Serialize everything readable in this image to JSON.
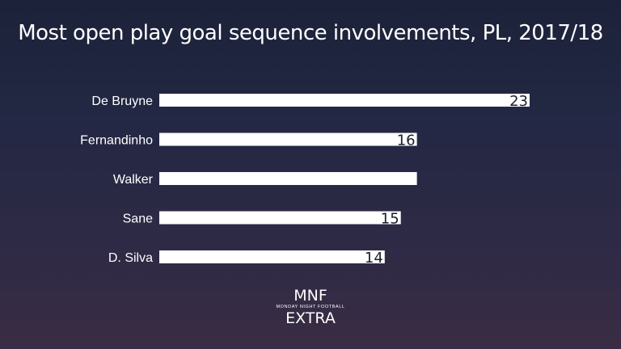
{
  "chart_data": {
    "type": "bar",
    "orientation": "horizontal",
    "title": "Most open play goal sequence involvements, PL, 2017/18",
    "categories": [
      "De Bruyne",
      "Fernandinho",
      "Walker",
      "Sane",
      "D. Silva"
    ],
    "values": [
      23,
      16,
      16,
      15,
      14
    ],
    "data_labels": [
      "23",
      "16",
      "",
      "15",
      "14"
    ],
    "xlim": [
      0,
      23
    ],
    "grid": false,
    "legend": "none",
    "bar_color": "#ffffff",
    "label_color": "#1a1d2e"
  },
  "branding": {
    "logo_top": "MNF",
    "logo_sub": "MONDAY NIGHT FOOTBALL",
    "logo_bottom": "EXTRA"
  }
}
